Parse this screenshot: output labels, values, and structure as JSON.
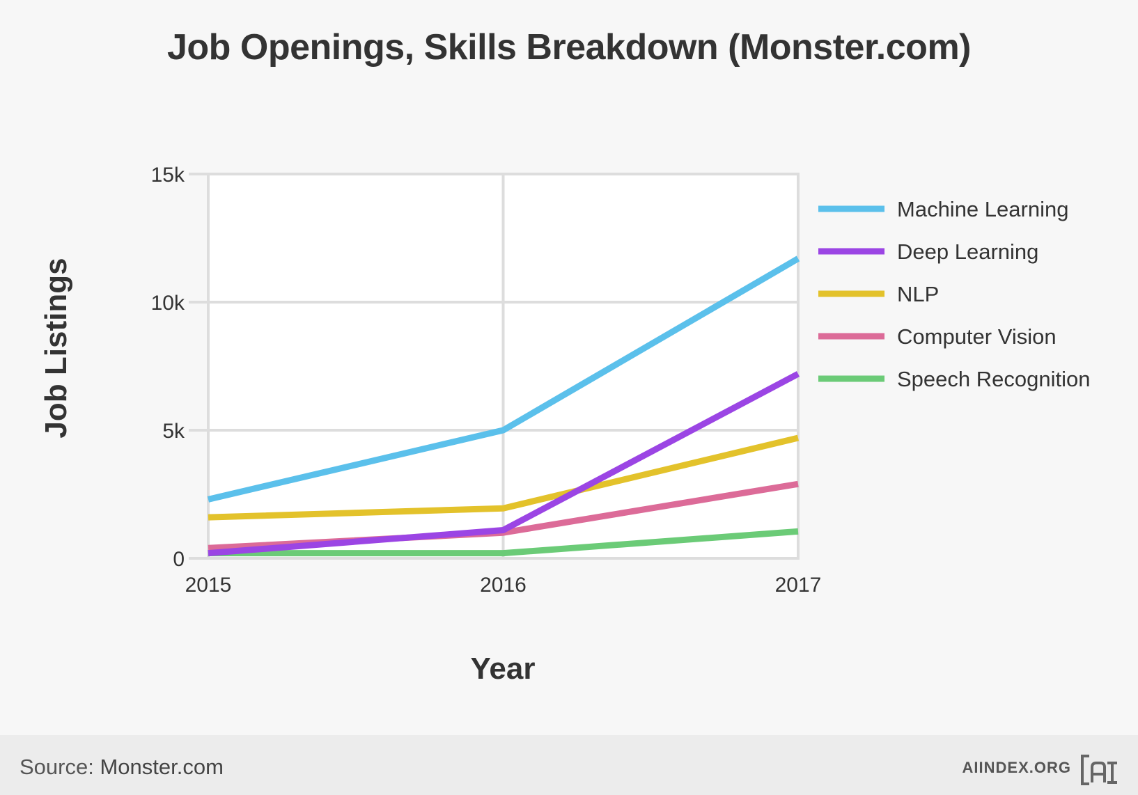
{
  "chart_data": {
    "type": "line",
    "title": "Job Openings, Skills Breakdown (Monster.com)",
    "xlabel": "Year",
    "ylabel": "Job Listings",
    "x": [
      2015,
      2016,
      2017
    ],
    "x_tick_labels": [
      "2015",
      "2016",
      "2017"
    ],
    "ylim": [
      0,
      15000
    ],
    "y_ticks": [
      0,
      5000,
      10000,
      15000
    ],
    "y_tick_labels": [
      "0",
      "5k",
      "10k",
      "15k"
    ],
    "grid": true,
    "legend_position": "right",
    "series": [
      {
        "name": "Machine Learning",
        "color": "#5bc0eb",
        "values": [
          2300,
          5000,
          11700
        ]
      },
      {
        "name": "Deep Learning",
        "color": "#9b45e4",
        "values": [
          200,
          1100,
          7200
        ]
      },
      {
        "name": "NLP",
        "color": "#e3c22b",
        "values": [
          1600,
          1950,
          4700
        ]
      },
      {
        "name": "Computer Vision",
        "color": "#dc6b98",
        "values": [
          400,
          1000,
          2900
        ]
      },
      {
        "name": "Speech Recognition",
        "color": "#6bcb77",
        "values": [
          200,
          200,
          1050
        ]
      }
    ]
  },
  "footer": {
    "source_label": "Source:",
    "source_value": "Monster.com",
    "brand": "AIINDEX.ORG",
    "logo_icon": "ai-index-logo-icon"
  }
}
